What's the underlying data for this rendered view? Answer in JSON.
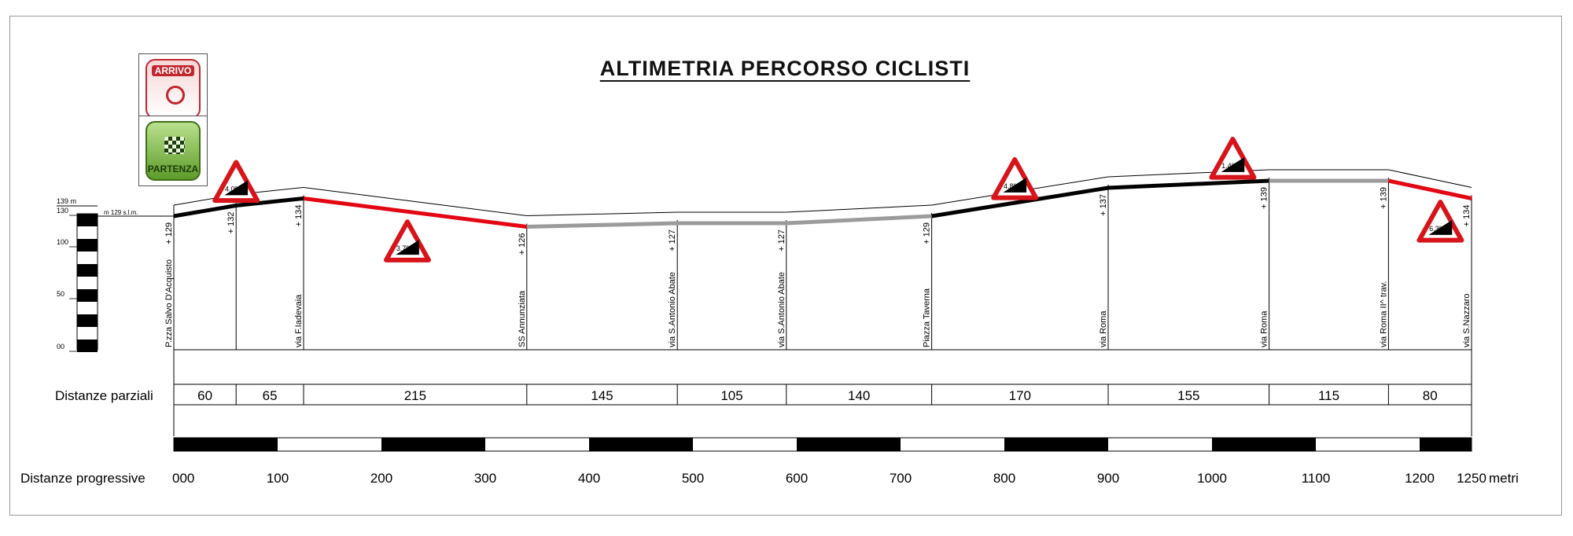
{
  "title": "ALTIMETRIA PERCORSO CICLISTI",
  "icons": [
    {
      "name": "arrivo-icon",
      "label": "ARRIVO"
    },
    {
      "name": "partenza-icon",
      "label": "PARTENZA"
    }
  ],
  "altitude_axis": {
    "top_label": "139 m",
    "ticks": [
      "130",
      "100",
      "50",
      "00"
    ],
    "start_note": "m 129 s.l.m."
  },
  "labels": {
    "partial_row": "Distanze parziali",
    "progressive_row": "Distanze progressive",
    "unit_suffix": "metri"
  },
  "chart_data": {
    "type": "line",
    "title": "ALTIMETRIA PERCORSO CICLISTI",
    "xlabel": "Distanze progressive",
    "x_unit": "metri",
    "y_unit": "m",
    "xlim": [
      0,
      1250
    ],
    "ylim": [
      0,
      139
    ],
    "x_ticks": [
      "000",
      "100",
      "200",
      "300",
      "400",
      "500",
      "600",
      "700",
      "800",
      "900",
      "1000",
      "1100",
      "1200",
      "1250"
    ],
    "y_ticks": [
      "130",
      "100",
      "50",
      "00"
    ],
    "points": [
      {
        "x": 0,
        "elev": 129,
        "elev_label": "+ 129",
        "street": "P.zza Salvo D'Acquisto"
      },
      {
        "x": 60,
        "elev": 132,
        "elev_label": "+ 132",
        "street": ""
      },
      {
        "x": 125,
        "elev": 134,
        "elev_label": "+ 134",
        "street": "via F.Iadevaia"
      },
      {
        "x": 340,
        "elev": 126,
        "elev_label": "+ 126",
        "street": "SS Annunziata"
      },
      {
        "x": 485,
        "elev": 127,
        "elev_label": "+ 127",
        "street": "via S.Antonio Abate"
      },
      {
        "x": 590,
        "elev": 127,
        "elev_label": "+ 127",
        "street": "via S.Antonio Abate"
      },
      {
        "x": 730,
        "elev": 129,
        "elev_label": "+ 129",
        "street": "Piazza Taverna"
      },
      {
        "x": 900,
        "elev": 137,
        "elev_label": "+ 137",
        "street": "via Roma"
      },
      {
        "x": 1055,
        "elev": 139,
        "elev_label": "+ 139",
        "street": "via Roma"
      },
      {
        "x": 1170,
        "elev": 139,
        "elev_label": "+ 139",
        "street": "via Roma II^ trav."
      },
      {
        "x": 1250,
        "elev": 134,
        "elev_label": "+ 134",
        "street": "via S.Nazzaro"
      }
    ],
    "segments": [
      {
        "from": 0,
        "to": 125,
        "color": "#000000"
      },
      {
        "from": 125,
        "to": 340,
        "color": "#e30613"
      },
      {
        "from": 340,
        "to": 730,
        "color": "#9b9b9b"
      },
      {
        "from": 730,
        "to": 1055,
        "color": "#000000"
      },
      {
        "from": 1055,
        "to": 1170,
        "color": "#9b9b9b"
      },
      {
        "from": 1170,
        "to": 1250,
        "color": "#e30613"
      }
    ],
    "partial_distances": [
      {
        "from": 0,
        "to": 60,
        "value": "60"
      },
      {
        "from": 60,
        "to": 125,
        "value": "65"
      },
      {
        "from": 125,
        "to": 340,
        "value": "215"
      },
      {
        "from": 340,
        "to": 485,
        "value": "145"
      },
      {
        "from": 485,
        "to": 590,
        "value": "105"
      },
      {
        "from": 590,
        "to": 730,
        "value": "140"
      },
      {
        "from": 730,
        "to": 900,
        "value": "170"
      },
      {
        "from": 900,
        "to": 1055,
        "value": "155"
      },
      {
        "from": 1055,
        "to": 1170,
        "value": "115"
      },
      {
        "from": 1170,
        "to": 1250,
        "value": "80"
      }
    ],
    "gradient_signs": [
      {
        "x": 60,
        "label": "4.0%",
        "direction": "up"
      },
      {
        "x": 225,
        "label": "3.7%",
        "direction": "down"
      },
      {
        "x": 810,
        "label": "4.8%",
        "direction": "up"
      },
      {
        "x": 1020,
        "label": "1.4%",
        "direction": "up"
      },
      {
        "x": 1220,
        "label": "6.3%",
        "direction": "down"
      }
    ],
    "colors": {
      "up": "#000000",
      "down": "#e30613",
      "flat": "#9b9b9b",
      "sign_border": "#d7141a"
    }
  }
}
